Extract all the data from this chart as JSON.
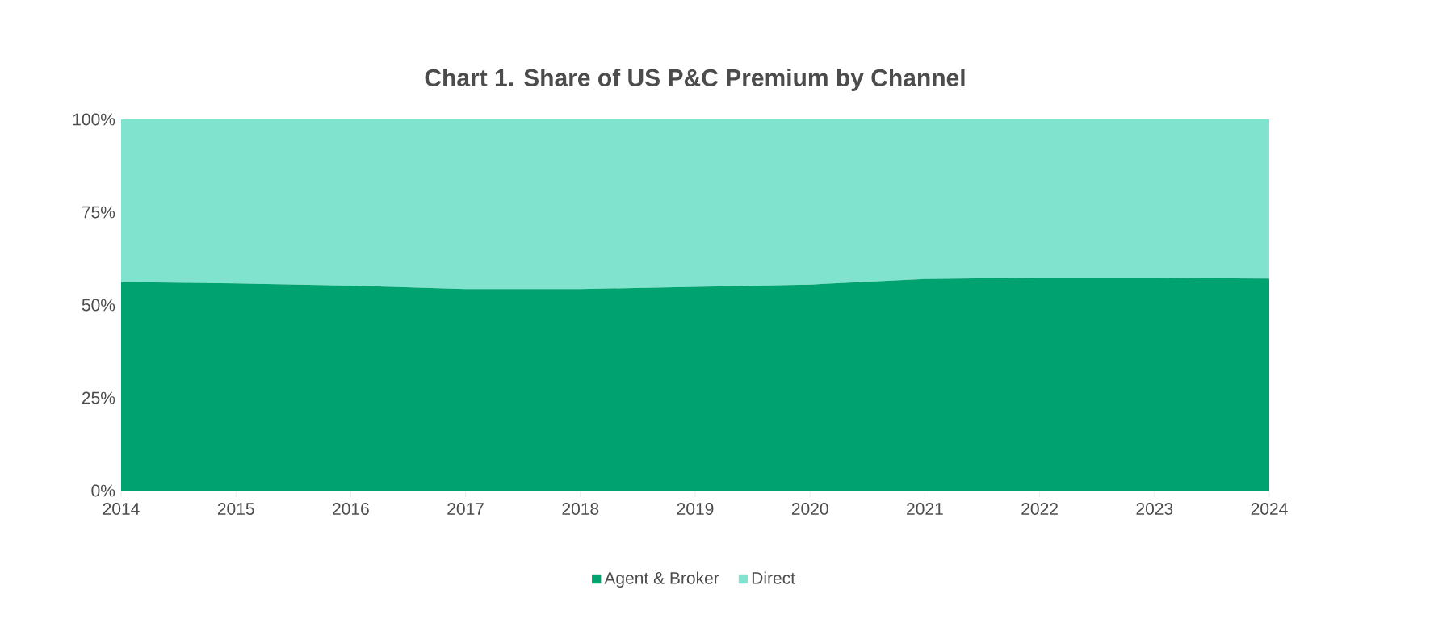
{
  "chart_data": {
    "type": "area",
    "stacked": true,
    "title": "Chart 1. Share of US P&C Premium by Channel",
    "x": [
      2014,
      2015,
      2016,
      2017,
      2018,
      2019,
      2020,
      2021,
      2022,
      2023,
      2024
    ],
    "series": [
      {
        "name": "Agent & Broker",
        "color": "#00a36f",
        "values": [
          56.2,
          55.8,
          55.2,
          54.3,
          54.3,
          54.9,
          55.5,
          57.0,
          57.4,
          57.4,
          57.1
        ]
      },
      {
        "name": "Direct",
        "color": "#7fe3ce",
        "values": [
          43.8,
          44.2,
          44.8,
          45.7,
          45.7,
          45.1,
          44.5,
          43.0,
          42.6,
          42.6,
          42.9
        ]
      }
    ],
    "xlim": [
      2014,
      2024
    ],
    "xticks": [
      {
        "value": 2014,
        "label": "2014"
      },
      {
        "value": 2015,
        "label": "2015"
      },
      {
        "value": 2016,
        "label": "2016"
      },
      {
        "value": 2017,
        "label": "2017"
      },
      {
        "value": 2018,
        "label": "2018"
      },
      {
        "value": 2019,
        "label": "2019"
      },
      {
        "value": 2020,
        "label": "2020"
      },
      {
        "value": 2021,
        "label": "2021"
      },
      {
        "value": 2022,
        "label": "2022"
      },
      {
        "value": 2023,
        "label": "2023"
      },
      {
        "value": 2024,
        "label": "2024"
      }
    ],
    "ylim": [
      0,
      100
    ],
    "yticks": [
      {
        "value": 0,
        "label": "0%"
      },
      {
        "value": 25,
        "label": "25%"
      },
      {
        "value": 50,
        "label": "50%"
      },
      {
        "value": 75,
        "label": "75%"
      },
      {
        "value": 100,
        "label": "100%"
      }
    ],
    "grid": false,
    "legend": "bottom"
  }
}
